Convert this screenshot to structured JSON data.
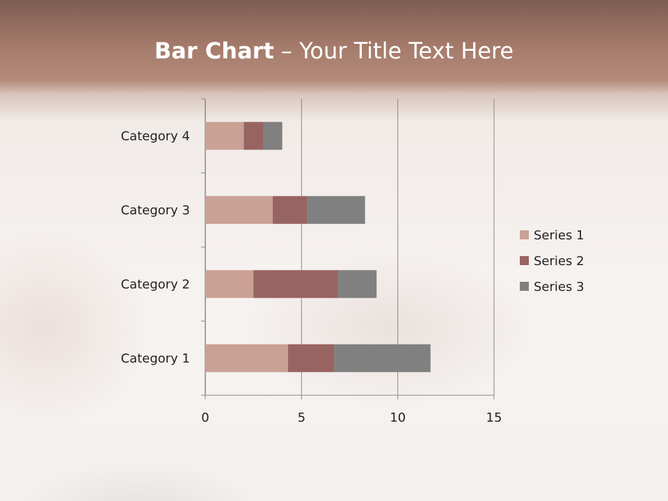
{
  "slide": {
    "title_bold": "Bar Chart",
    "title_dash": " – ",
    "title_rest": "Your Title Text Here"
  },
  "chart_data": {
    "type": "bar",
    "orientation": "horizontal",
    "stacked": true,
    "categories": [
      "Category 1",
      "Category 2",
      "Category 3",
      "Category 4"
    ],
    "series": [
      {
        "name": "Series 1",
        "values": [
          4.3,
          2.5,
          3.5,
          2.0
        ],
        "color": "#c9a195"
      },
      {
        "name": "Series 2",
        "values": [
          2.4,
          4.4,
          1.8,
          1.0
        ],
        "color": "#986462"
      },
      {
        "name": "Series 3",
        "values": [
          5.0,
          2.0,
          3.0,
          1.0
        ],
        "color": "#808080"
      }
    ],
    "xlim": [
      0,
      15
    ],
    "xticks": [
      0,
      5,
      10,
      15
    ],
    "grid": "vertical major gridlines",
    "legend": "right"
  }
}
